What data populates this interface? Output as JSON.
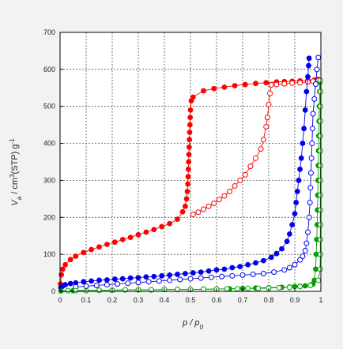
{
  "chart_data": {
    "type": "scatter",
    "title": "",
    "xlabel_main": "p / p",
    "xlabel_sub": "0",
    "ylabel_main": "V",
    "ylabel_sub": "a",
    "ylabel_rest": " / cm",
    "ylabel_sup": "3",
    "ylabel_rest2": "(STP) g",
    "ylabel_sup2": "-1",
    "xlim": [
      0,
      1
    ],
    "ylim": [
      0,
      700
    ],
    "x_ticks": [
      "0",
      "0.1",
      "0.2",
      "0.3",
      "0.4",
      "0.5",
      "0.6",
      "0.7",
      "0.8",
      "0.9",
      "1"
    ],
    "y_ticks": [
      "0",
      "100",
      "200",
      "300",
      "400",
      "500",
      "600",
      "700"
    ],
    "grid": true,
    "series": [
      {
        "color": "#ff0000",
        "marker": "filled",
        "points": [
          [
            0.002,
            20
          ],
          [
            0.005,
            45
          ],
          [
            0.01,
            60
          ],
          [
            0.02,
            72
          ],
          [
            0.04,
            86
          ],
          [
            0.06,
            95
          ],
          [
            0.09,
            105
          ],
          [
            0.12,
            113
          ],
          [
            0.15,
            120
          ],
          [
            0.18,
            127
          ],
          [
            0.21,
            133
          ],
          [
            0.24,
            140
          ],
          [
            0.27,
            146
          ],
          [
            0.3,
            153
          ],
          [
            0.33,
            160
          ],
          [
            0.36,
            167
          ],
          [
            0.39,
            175
          ],
          [
            0.42,
            183
          ],
          [
            0.45,
            195
          ],
          [
            0.47,
            215
          ],
          [
            0.48,
            230
          ],
          [
            0.485,
            250
          ],
          [
            0.488,
            270
          ],
          [
            0.49,
            290
          ],
          [
            0.491,
            310
          ],
          [
            0.492,
            330
          ],
          [
            0.493,
            350
          ],
          [
            0.494,
            370
          ],
          [
            0.495,
            390
          ],
          [
            0.496,
            410
          ],
          [
            0.497,
            430
          ],
          [
            0.498,
            450
          ],
          [
            0.499,
            470
          ],
          [
            0.5,
            490
          ],
          [
            0.503,
            515
          ],
          [
            0.51,
            525
          ],
          [
            0.55,
            542
          ],
          [
            0.59,
            548
          ],
          [
            0.63,
            552
          ],
          [
            0.67,
            556
          ],
          [
            0.71,
            559
          ],
          [
            0.75,
            562
          ],
          [
            0.79,
            564
          ],
          [
            0.83,
            566
          ],
          [
            0.86,
            567
          ],
          [
            0.89,
            568
          ],
          [
            0.92,
            569
          ],
          [
            0.95,
            570
          ],
          [
            0.975,
            571
          ],
          [
            0.99,
            573
          ]
        ]
      },
      {
        "color": "#ff0000",
        "marker": "open",
        "points": [
          [
            0.99,
            570
          ],
          [
            0.97,
            568
          ],
          [
            0.95,
            566
          ],
          [
            0.92,
            564
          ],
          [
            0.89,
            563
          ],
          [
            0.86,
            561
          ],
          [
            0.83,
            559
          ],
          [
            0.81,
            558
          ],
          [
            0.805,
            535
          ],
          [
            0.8,
            505
          ],
          [
            0.795,
            470
          ],
          [
            0.79,
            445
          ],
          [
            0.78,
            410
          ],
          [
            0.77,
            385
          ],
          [
            0.75,
            360
          ],
          [
            0.73,
            338
          ],
          [
            0.71,
            315
          ],
          [
            0.69,
            300
          ],
          [
            0.67,
            285
          ],
          [
            0.65,
            270
          ],
          [
            0.63,
            258
          ],
          [
            0.61,
            248
          ],
          [
            0.59,
            238
          ],
          [
            0.57,
            230
          ],
          [
            0.55,
            222
          ],
          [
            0.53,
            214
          ],
          [
            0.51,
            208
          ]
        ]
      },
      {
        "color": "#0000ee",
        "marker": "filled",
        "points": [
          [
            0.003,
            10
          ],
          [
            0.01,
            14
          ],
          [
            0.02,
            18
          ],
          [
            0.04,
            21
          ],
          [
            0.06,
            23
          ],
          [
            0.09,
            26
          ],
          [
            0.12,
            28
          ],
          [
            0.15,
            30
          ],
          [
            0.18,
            31
          ],
          [
            0.21,
            33
          ],
          [
            0.24,
            34
          ],
          [
            0.27,
            36
          ],
          [
            0.3,
            37
          ],
          [
            0.33,
            39
          ],
          [
            0.36,
            40
          ],
          [
            0.39,
            42
          ],
          [
            0.42,
            44
          ],
          [
            0.45,
            46
          ],
          [
            0.48,
            48
          ],
          [
            0.51,
            50
          ],
          [
            0.54,
            52
          ],
          [
            0.57,
            55
          ],
          [
            0.6,
            58
          ],
          [
            0.63,
            60
          ],
          [
            0.66,
            64
          ],
          [
            0.69,
            67
          ],
          [
            0.72,
            72
          ],
          [
            0.75,
            77
          ],
          [
            0.78,
            83
          ],
          [
            0.81,
            92
          ],
          [
            0.83,
            102
          ],
          [
            0.85,
            115
          ],
          [
            0.87,
            135
          ],
          [
            0.88,
            155
          ],
          [
            0.89,
            180
          ],
          [
            0.9,
            210
          ],
          [
            0.905,
            240
          ],
          [
            0.91,
            270
          ],
          [
            0.915,
            300
          ],
          [
            0.92,
            330
          ],
          [
            0.925,
            360
          ],
          [
            0.93,
            400
          ],
          [
            0.935,
            440
          ],
          [
            0.94,
            490
          ],
          [
            0.945,
            540
          ],
          [
            0.95,
            580
          ],
          [
            0.953,
            610
          ],
          [
            0.955,
            630
          ]
        ]
      },
      {
        "color": "#0000ee",
        "marker": "open",
        "points": [
          [
            0.99,
            632
          ],
          [
            0.985,
            600
          ],
          [
            0.98,
            560
          ],
          [
            0.975,
            520
          ],
          [
            0.97,
            480
          ],
          [
            0.968,
            440
          ],
          [
            0.966,
            400
          ],
          [
            0.964,
            360
          ],
          [
            0.962,
            320
          ],
          [
            0.96,
            280
          ],
          [
            0.958,
            240
          ],
          [
            0.955,
            200
          ],
          [
            0.95,
            160
          ],
          [
            0.945,
            130
          ],
          [
            0.94,
            110
          ],
          [
            0.93,
            95
          ],
          [
            0.92,
            85
          ],
          [
            0.9,
            72
          ],
          [
            0.88,
            64
          ],
          [
            0.86,
            58
          ],
          [
            0.82,
            52
          ],
          [
            0.78,
            48
          ],
          [
            0.74,
            46
          ],
          [
            0.7,
            44
          ],
          [
            0.66,
            42
          ],
          [
            0.62,
            40
          ],
          [
            0.58,
            38
          ],
          [
            0.54,
            36
          ],
          [
            0.5,
            34
          ],
          [
            0.46,
            32
          ],
          [
            0.42,
            30
          ],
          [
            0.38,
            28
          ],
          [
            0.34,
            26
          ],
          [
            0.3,
            24
          ],
          [
            0.26,
            22
          ],
          [
            0.22,
            20
          ],
          [
            0.18,
            18
          ],
          [
            0.14,
            16
          ],
          [
            0.1,
            14
          ],
          [
            0.06,
            12
          ]
        ]
      },
      {
        "color": "#00a000",
        "marker": "filled",
        "points": [
          [
            0.003,
            1
          ],
          [
            0.05,
            2
          ],
          [
            0.1,
            2
          ],
          [
            0.15,
            3
          ],
          [
            0.2,
            3
          ],
          [
            0.25,
            4
          ],
          [
            0.3,
            4
          ],
          [
            0.35,
            4
          ],
          [
            0.4,
            5
          ],
          [
            0.45,
            5
          ],
          [
            0.5,
            5
          ],
          [
            0.55,
            6
          ],
          [
            0.6,
            6
          ],
          [
            0.65,
            7
          ],
          [
            0.7,
            8
          ],
          [
            0.75,
            9
          ],
          [
            0.8,
            10
          ],
          [
            0.85,
            11
          ],
          [
            0.88,
            12
          ],
          [
            0.9,
            13
          ],
          [
            0.92,
            14
          ],
          [
            0.94,
            15
          ],
          [
            0.96,
            17
          ],
          [
            0.97,
            20
          ],
          [
            0.975,
            30
          ],
          [
            0.98,
            60
          ],
          [
            0.982,
            100
          ],
          [
            0.984,
            140
          ],
          [
            0.986,
            180
          ],
          [
            0.987,
            220
          ],
          [
            0.988,
            260
          ],
          [
            0.989,
            300
          ],
          [
            0.99,
            340
          ],
          [
            0.991,
            380
          ],
          [
            0.992,
            420
          ],
          [
            0.993,
            460
          ],
          [
            0.994,
            500
          ],
          [
            0.995,
            540
          ],
          [
            0.996,
            565
          ]
        ]
      },
      {
        "color": "#00a000",
        "marker": "open",
        "points": [
          [
            0.998,
            570
          ],
          [
            0.998,
            540
          ],
          [
            0.998,
            500
          ],
          [
            0.998,
            460
          ],
          [
            0.998,
            420
          ],
          [
            0.998,
            380
          ],
          [
            0.998,
            340
          ],
          [
            0.998,
            300
          ],
          [
            0.998,
            260
          ],
          [
            0.998,
            220
          ],
          [
            0.998,
            180
          ],
          [
            0.998,
            140
          ],
          [
            0.998,
            100
          ],
          [
            0.997,
            60
          ],
          [
            0.99,
            30
          ],
          [
            0.96,
            16
          ],
          [
            0.92,
            13
          ],
          [
            0.88,
            11
          ],
          [
            0.84,
            10
          ],
          [
            0.8,
            9
          ],
          [
            0.76,
            8
          ],
          [
            0.72,
            8
          ],
          [
            0.68,
            7
          ],
          [
            0.64,
            7
          ],
          [
            0.6,
            6
          ],
          [
            0.55,
            6
          ],
          [
            0.5,
            5
          ],
          [
            0.45,
            5
          ],
          [
            0.4,
            5
          ],
          [
            0.35,
            4
          ],
          [
            0.3,
            4
          ],
          [
            0.25,
            4
          ],
          [
            0.2,
            3
          ],
          [
            0.15,
            3
          ],
          [
            0.1,
            2
          ],
          [
            0.06,
            2
          ],
          [
            0.03,
            2
          ]
        ]
      }
    ]
  }
}
